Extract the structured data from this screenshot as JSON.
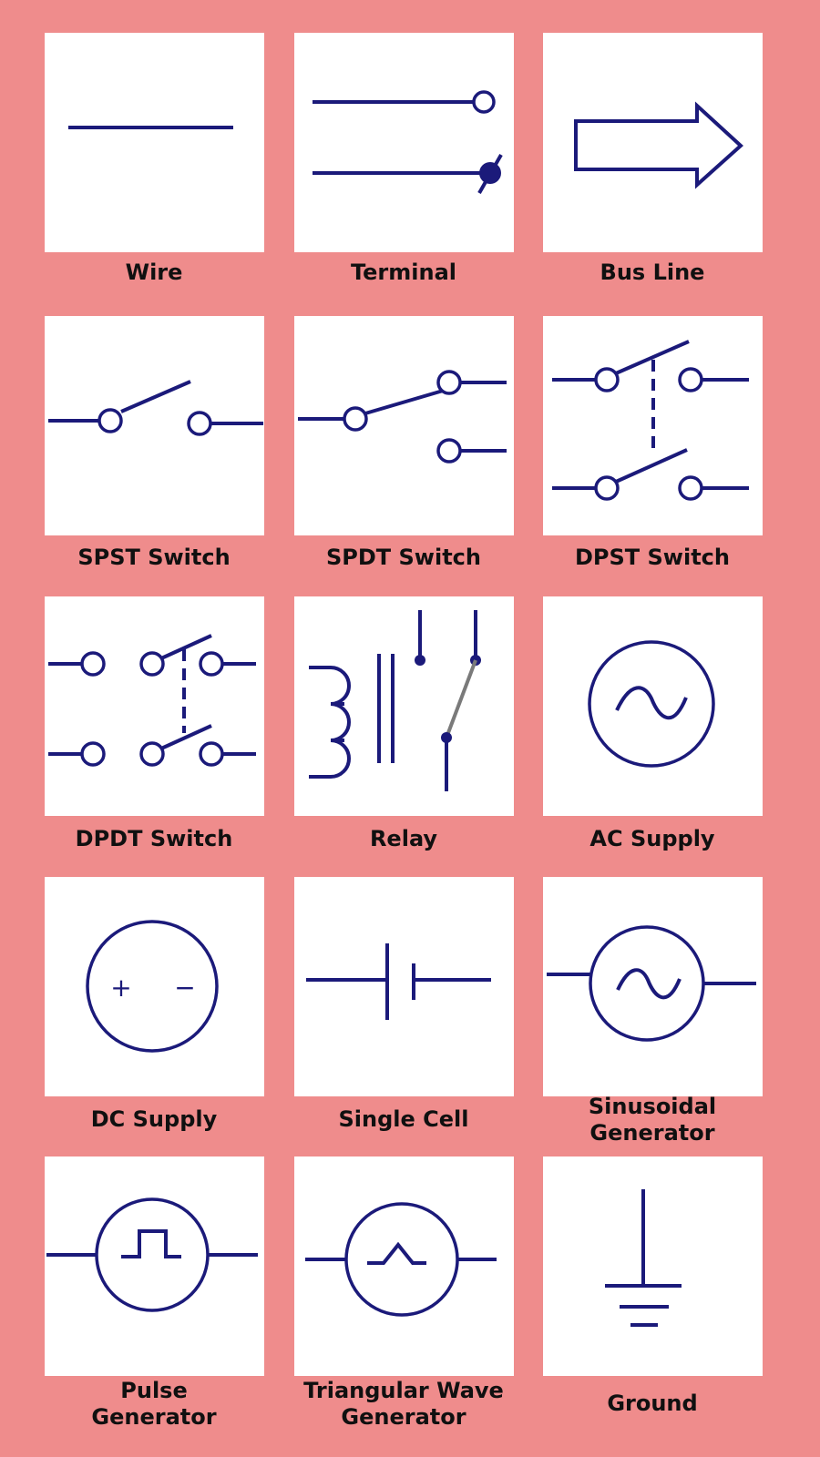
{
  "colors": {
    "background": "#ef8c8c",
    "tile": "#ffffff",
    "symbol": "#1b1a7a",
    "label": "#101010"
  },
  "symbols": [
    {
      "label": "Wire",
      "icon": "wire-icon"
    },
    {
      "label": "Terminal",
      "icon": "terminal-icon"
    },
    {
      "label": "Bus Line",
      "icon": "bus-line-icon"
    },
    {
      "label": "SPST Switch",
      "icon": "spst-switch-icon"
    },
    {
      "label": "SPDT Switch",
      "icon": "spdt-switch-icon"
    },
    {
      "label": "DPST Switch",
      "icon": "dpst-switch-icon"
    },
    {
      "label": "DPDT Switch",
      "icon": "dpdt-switch-icon"
    },
    {
      "label": "Relay",
      "icon": "relay-icon"
    },
    {
      "label": "AC Supply",
      "icon": "ac-supply-icon"
    },
    {
      "label": "DC Supply",
      "icon": "dc-supply-icon",
      "plus": "+",
      "minus": "−"
    },
    {
      "label": "Single Cell",
      "icon": "single-cell-icon"
    },
    {
      "label": "Sinusoidal\nGenerator",
      "icon": "sinusoidal-generator-icon"
    },
    {
      "label": "Pulse\nGenerator",
      "icon": "pulse-generator-icon"
    },
    {
      "label": "Triangular Wave\nGenerator",
      "icon": "triangular-wave-generator-icon"
    },
    {
      "label": "Ground",
      "icon": "ground-icon"
    }
  ]
}
